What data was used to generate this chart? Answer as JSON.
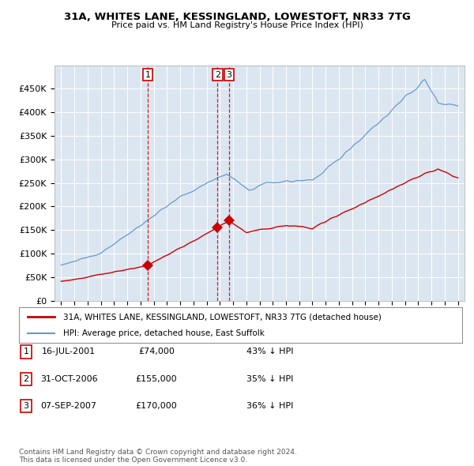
{
  "title": "31A, WHITES LANE, KESSINGLAND, LOWESTOFT, NR33 7TG",
  "subtitle": "Price paid vs. HM Land Registry's House Price Index (HPI)",
  "ylim": [
    0,
    500000
  ],
  "yticks": [
    0,
    50000,
    100000,
    150000,
    200000,
    250000,
    300000,
    350000,
    400000,
    450000
  ],
  "ytick_labels": [
    "£0",
    "£50K",
    "£100K",
    "£150K",
    "£200K",
    "£250K",
    "£300K",
    "£350K",
    "£400K",
    "£450K"
  ],
  "xlim": [
    1994.5,
    2025.5
  ],
  "background_color": "#ffffff",
  "plot_bg_color": "#dce6f1",
  "grid_color": "#ffffff",
  "hpi_line_color": "#6699cc",
  "price_line_color": "#cc0000",
  "transaction_line_color": "#cc0000",
  "transactions": [
    {
      "num": 1,
      "year": 2001.54,
      "price": 74000,
      "label": "16-JUL-2001",
      "price_str": "£74,000",
      "hpi_str": "43% ↓ HPI"
    },
    {
      "num": 2,
      "year": 2006.83,
      "price": 155000,
      "label": "31-OCT-2006",
      "price_str": "£155,000",
      "hpi_str": "35% ↓ HPI"
    },
    {
      "num": 3,
      "year": 2007.69,
      "price": 170000,
      "label": "07-SEP-2007",
      "price_str": "£170,000",
      "hpi_str": "36% ↓ HPI"
    }
  ],
  "legend_label_price": "31A, WHITES LANE, KESSINGLAND, LOWESTOFT, NR33 7TG (detached house)",
  "legend_label_hpi": "HPI: Average price, detached house, East Suffolk",
  "footer": "Contains HM Land Registry data © Crown copyright and database right 2024.\nThis data is licensed under the Open Government Licence v3.0."
}
